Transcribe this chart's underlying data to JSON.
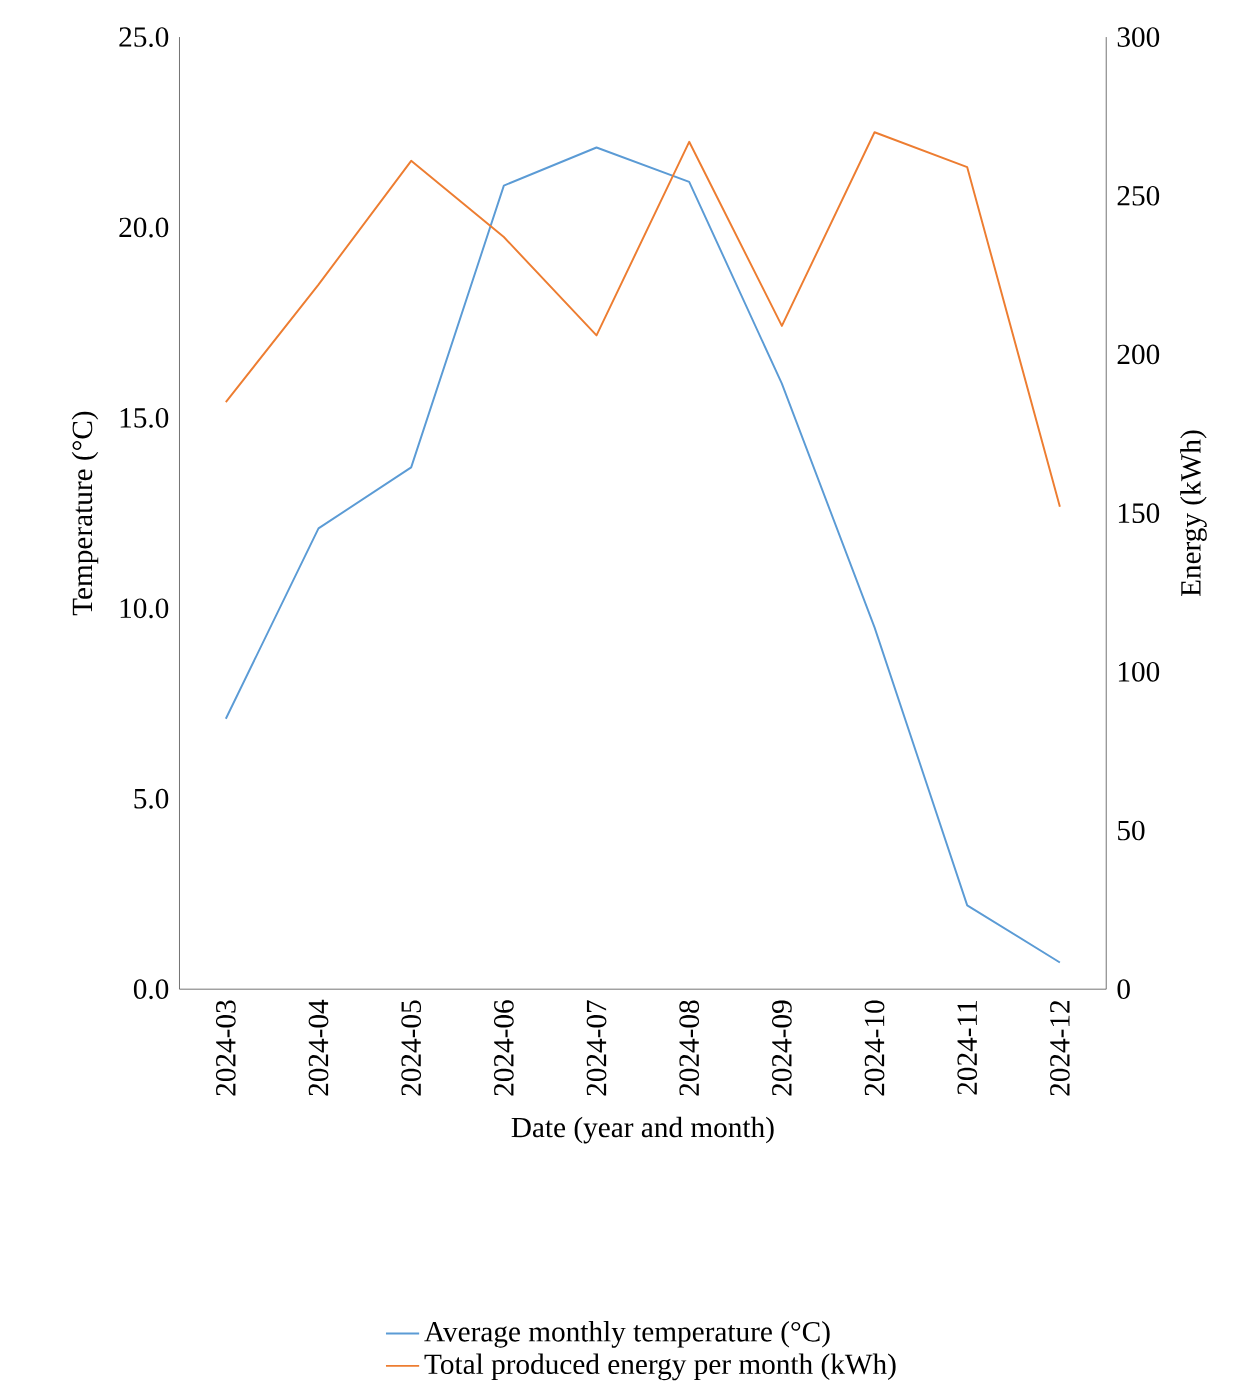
{
  "chart_data": {
    "type": "line",
    "xlabel": "Date (year and month)",
    "ylabel": "Temperature (°C)",
    "y2label": "Energy (kWh)",
    "categories": [
      "2024-03",
      "2024-04",
      "2024-05",
      "2024-06",
      "2024-07",
      "2024-08",
      "2024-09",
      "2024-10",
      "2024-11",
      "2024-12"
    ],
    "series": [
      {
        "name": "Average monthly temperature (°C)",
        "color": "#5b9bd5",
        "values": [
          7.1,
          12.1,
          13.7,
          21.1,
          22.1,
          21.2,
          15.9,
          9.5,
          2.2,
          0.7
        ]
      },
      {
        "name": "Total produced energy per month (kWh)",
        "color": "#ed7d31",
        "axis": "y2",
        "values": [
          185,
          222,
          261,
          237,
          206,
          267,
          209,
          270,
          259,
          152
        ]
      }
    ],
    "ylim": [
      0,
      25
    ],
    "yticks": [
      {
        "value": 0,
        "label": "0.0"
      },
      {
        "value": 5,
        "label": "5.0"
      },
      {
        "value": 10,
        "label": "10.0"
      },
      {
        "value": 15,
        "label": "15.0"
      },
      {
        "value": 20,
        "label": "20.0"
      },
      {
        "value": 25,
        "label": "25.0"
      }
    ],
    "y2lim": [
      0,
      300
    ],
    "y2ticks": [
      0,
      50,
      100,
      150,
      200,
      250,
      300
    ],
    "grid": false,
    "legend": "bottom",
    "marker": "none",
    "line_style": "solid"
  }
}
